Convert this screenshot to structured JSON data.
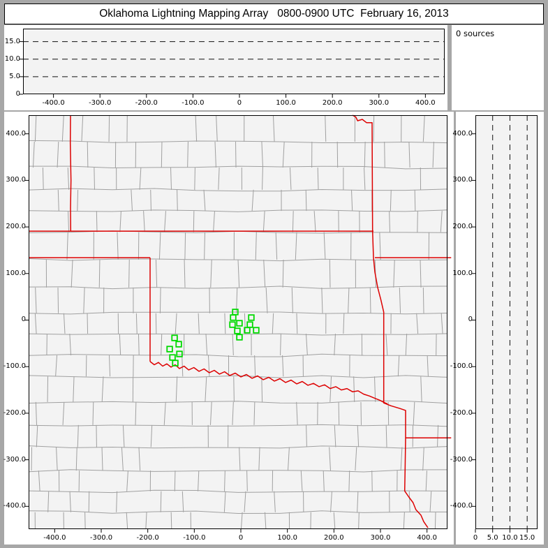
{
  "window": {
    "title": "Oklahoma Lightning Mapping Array   0800-0900 UTC  February 16, 2013"
  },
  "sources_panel": {
    "text": "0 sources"
  },
  "colors": {
    "frame": "#a7a7a7",
    "panel_bg": "#ffffff",
    "plot_bg": "#f3f3f3",
    "plot_border": "#000000",
    "county_line": "#a0a0a0",
    "state_line": "#dd0000",
    "station": "#00d900",
    "dash_line": "#111111",
    "tick": "#000000"
  },
  "chart_data": [
    {
      "id": "alt-vs-ew",
      "type": "scatter",
      "points": [],
      "xlim": [
        -465.5,
        441.5
      ],
      "ylim": [
        0,
        18.7
      ],
      "grid": "dashed-horizontal",
      "dashed_hlines": [
        5,
        10,
        15
      ],
      "xticks": {
        "values": [
          -400,
          -300,
          -200,
          -100,
          0,
          100,
          200,
          300,
          400
        ],
        "labels": [
          "-400.0",
          "-300.0",
          "-200.0",
          "-100.0",
          "0",
          "100.0",
          "200.0",
          "300.0",
          "400.0"
        ]
      },
      "yticks": {
        "values": [
          15,
          10,
          5,
          0
        ],
        "labels": [
          "15.0",
          "10.0",
          "5.0",
          "0"
        ]
      }
    },
    {
      "id": "map-plan-view",
      "type": "scatter",
      "xlim": [
        -456,
        444
      ],
      "ylim": [
        -449,
        440
      ],
      "xticks": {
        "values": [
          -400,
          -300,
          -200,
          -100,
          0,
          100,
          200,
          300,
          400
        ],
        "labels": [
          "-400.0",
          "-300.0",
          "-200.0",
          "-100.0",
          "0",
          "100.0",
          "200.0",
          "300.0",
          "400.0"
        ]
      },
      "yticks": {
        "values": [
          400,
          300,
          200,
          100,
          0,
          -100,
          -200,
          -300,
          -400
        ],
        "labels": [
          "400.0",
          "300.0",
          "200.0",
          "100.0",
          "0",
          "-100.0",
          "-200.0",
          "-300.0",
          "-400.0"
        ]
      },
      "stations_km": [
        [
          -12.0,
          17.3
        ],
        [
          -16.5,
          5.3
        ],
        [
          22.5,
          5.3
        ],
        [
          -18.0,
          -9.8
        ],
        [
          -3.0,
          -6.8
        ],
        [
          19.5,
          -9.8
        ],
        [
          -7.5,
          -23.3
        ],
        [
          13.5,
          -21.8
        ],
        [
          33.0,
          -21.8
        ],
        [
          -3.0,
          -36.8
        ],
        [
          -142.4,
          -38.3
        ],
        [
          -133.4,
          -51.8
        ],
        [
          -152.9,
          -62.3
        ],
        [
          -131.9,
          -72.8
        ],
        [
          -146.9,
          -80.3
        ],
        [
          -140.9,
          -92.3
        ]
      ],
      "state_borders_km": [
        [
          [
            -366,
            440
          ],
          [
            -366.5,
            380
          ],
          [
            -365,
            300
          ],
          [
            -366,
            240
          ],
          [
            -365.5,
            191
          ]
        ],
        [
          [
            -456,
            191
          ],
          [
            285,
            191
          ]
        ],
        [
          [
            -456,
            134
          ],
          [
            -195,
            134
          ]
        ],
        [
          [
            -195,
            134
          ],
          [
            -195,
            -89
          ]
        ],
        [
          [
            -195,
            -89
          ],
          [
            -186,
            -96
          ],
          [
            -177,
            -91
          ],
          [
            -168,
            -99
          ],
          [
            -159,
            -94
          ],
          [
            -150,
            -101
          ],
          [
            -141,
            -96
          ],
          [
            -132,
            -104
          ],
          [
            -122,
            -99
          ],
          [
            -112,
            -107
          ],
          [
            -101,
            -102
          ],
          [
            -90,
            -110
          ],
          [
            -79,
            -105
          ],
          [
            -68,
            -113
          ],
          [
            -57,
            -108
          ],
          [
            -46,
            -116
          ],
          [
            -35,
            -111
          ],
          [
            -24,
            -119
          ],
          [
            -12,
            -114
          ],
          [
            0,
            -122
          ],
          [
            12,
            -117
          ],
          [
            24,
            -125
          ],
          [
            36,
            -120
          ],
          [
            48,
            -128
          ],
          [
            60,
            -123
          ],
          [
            72,
            -131
          ],
          [
            84,
            -126
          ],
          [
            96,
            -134
          ],
          [
            108,
            -129
          ],
          [
            120,
            -137
          ],
          [
            132,
            -132
          ],
          [
            144,
            -140
          ],
          [
            156,
            -136
          ],
          [
            168,
            -143
          ],
          [
            180,
            -139
          ],
          [
            192,
            -147
          ],
          [
            204,
            -143
          ],
          [
            216,
            -150
          ],
          [
            228,
            -147
          ],
          [
            240,
            -154
          ],
          [
            252,
            -152
          ],
          [
            264,
            -159
          ],
          [
            276,
            -163
          ],
          [
            288,
            -168
          ],
          [
            298,
            -172
          ],
          [
            308,
            -177
          ],
          [
            315,
            -180
          ]
        ],
        [
          [
            240,
            440
          ],
          [
            247,
            436
          ],
          [
            251,
            428
          ],
          [
            261,
            431
          ],
          [
            270,
            424
          ],
          [
            282,
            424
          ],
          [
            283,
            191
          ],
          [
            285,
            134
          ],
          [
            288,
            103
          ],
          [
            294,
            70
          ],
          [
            301,
            43
          ],
          [
            307,
            17
          ],
          [
            307,
            -100
          ],
          [
            307,
            -178
          ],
          [
            322,
            -184
          ],
          [
            342,
            -190
          ],
          [
            354,
            -194
          ],
          [
            354,
            -253
          ],
          [
            353,
            -320
          ],
          [
            352,
            -367
          ],
          [
            361,
            -380
          ],
          [
            370,
            -392
          ],
          [
            376,
            -407
          ],
          [
            387,
            -419
          ],
          [
            393,
            -433
          ],
          [
            402,
            -446
          ]
        ],
        [
          [
            288,
            134
          ],
          [
            452,
            134
          ]
        ],
        [
          [
            354,
            -253
          ],
          [
            452,
            -253
          ]
        ]
      ],
      "counties": {
        "seed": 20130216,
        "row_min": 29,
        "row_var": 12,
        "col_min": 27,
        "col_var": 16,
        "skip": 0.13
      }
    },
    {
      "id": "alt-vs-ns",
      "type": "scatter",
      "points": [],
      "xlim": [
        0,
        18
      ],
      "ylim": [
        -449,
        440
      ],
      "grid": "dashed-vertical",
      "dashed_vlines": [
        5,
        10,
        15
      ],
      "xticks": {
        "values": [
          0,
          5,
          10,
          15
        ],
        "labels": [
          "0",
          "5.0",
          "10.0",
          "15.0"
        ]
      },
      "yticks": {
        "values": [
          400,
          300,
          200,
          100,
          0,
          -100,
          -200,
          -300,
          -400
        ],
        "labels": [
          "400.0",
          "300.0",
          "200.0",
          "100.0",
          "0",
          "-100.0",
          "-200.0",
          "-300.0",
          "-400.0"
        ]
      }
    }
  ]
}
